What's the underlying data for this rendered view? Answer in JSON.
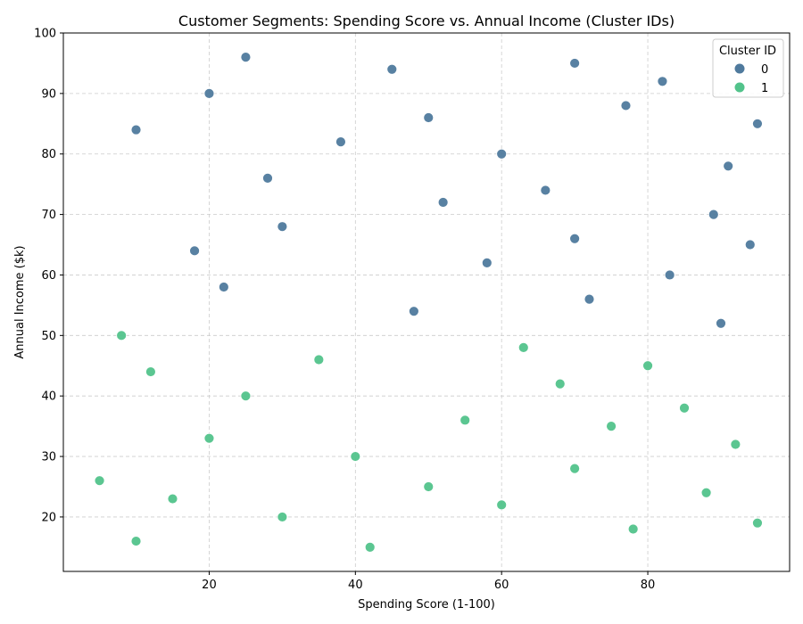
{
  "chart_data": {
    "type": "scatter",
    "title": "Customer Segments: Spending Score vs. Annual Income (Cluster IDs)",
    "xlabel": "Spending Score (1-100)",
    "ylabel": "Annual Income ($k)",
    "xlim": [
      0.05,
      99.4
    ],
    "ylim": [
      11,
      100
    ],
    "xticks": [
      20,
      40,
      60,
      80
    ],
    "yticks": [
      20,
      30,
      40,
      50,
      60,
      70,
      80,
      90,
      100
    ],
    "grid": true,
    "legend": {
      "title": "Cluster ID",
      "position": "top-right"
    },
    "series": [
      {
        "name": "0",
        "color": "#4f7a9d",
        "points": [
          [
            25,
            96
          ],
          [
            45,
            94
          ],
          [
            70,
            95
          ],
          [
            82,
            92
          ],
          [
            20,
            90
          ],
          [
            50,
            86
          ],
          [
            77,
            88
          ],
          [
            10,
            84
          ],
          [
            95,
            85
          ],
          [
            38,
            82
          ],
          [
            60,
            80
          ],
          [
            91,
            78
          ],
          [
            28,
            76
          ],
          [
            66,
            74
          ],
          [
            52,
            72
          ],
          [
            89,
            70
          ],
          [
            30,
            68
          ],
          [
            70,
            66
          ],
          [
            94,
            65
          ],
          [
            18,
            64
          ],
          [
            58,
            62
          ],
          [
            83,
            60
          ],
          [
            22,
            58
          ],
          [
            72,
            56
          ],
          [
            48,
            54
          ],
          [
            90,
            52
          ]
        ]
      },
      {
        "name": "1",
        "color": "#52c38b",
        "points": [
          [
            8,
            50
          ],
          [
            63,
            48
          ],
          [
            35,
            46
          ],
          [
            80,
            45
          ],
          [
            12,
            44
          ],
          [
            68,
            42
          ],
          [
            25,
            40
          ],
          [
            85,
            38
          ],
          [
            55,
            36
          ],
          [
            75,
            35
          ],
          [
            20,
            33
          ],
          [
            92,
            32
          ],
          [
            40,
            30
          ],
          [
            70,
            28
          ],
          [
            5,
            26
          ],
          [
            50,
            25
          ],
          [
            88,
            24
          ],
          [
            15,
            23
          ],
          [
            60,
            22
          ],
          [
            30,
            20
          ],
          [
            95,
            19
          ],
          [
            78,
            18
          ],
          [
            10,
            16
          ],
          [
            42,
            15
          ]
        ]
      }
    ]
  }
}
